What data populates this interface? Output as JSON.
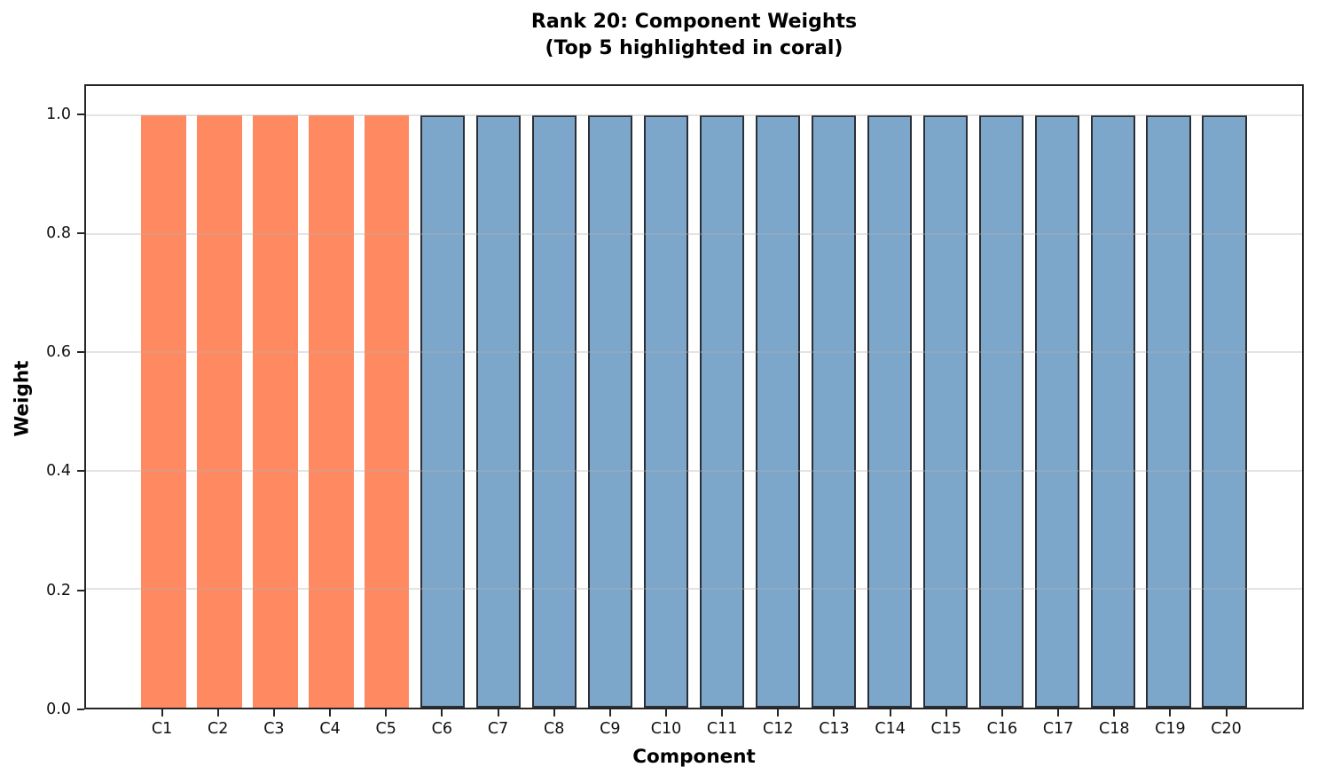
{
  "figure": {
    "title_line1": "Rank 20: Component Weights",
    "title_line2": "(Top 5 highlighted in coral)",
    "xlabel": "Component",
    "ylabel": "Weight"
  },
  "chart_data": {
    "type": "bar",
    "title": "Rank 20: Component Weights\n(Top 5 highlighted in coral)",
    "xlabel": "Component",
    "ylabel": "Weight",
    "categories": [
      "C1",
      "C2",
      "C3",
      "C4",
      "C5",
      "C6",
      "C7",
      "C8",
      "C9",
      "C10",
      "C11",
      "C12",
      "C13",
      "C14",
      "C15",
      "C16",
      "C17",
      "C18",
      "C19",
      "C20"
    ],
    "values": [
      1.0,
      1.0,
      1.0,
      1.0,
      1.0,
      1.0,
      1.0,
      1.0,
      1.0,
      1.0,
      1.0,
      1.0,
      1.0,
      1.0,
      1.0,
      1.0,
      1.0,
      1.0,
      1.0,
      1.0
    ],
    "highlight_count": 5,
    "ylim": [
      0,
      1.05
    ],
    "ytick_values": [
      0.0,
      0.2,
      0.4,
      0.6,
      0.8,
      1.0
    ],
    "ytick_labels": [
      "0.0",
      "0.2",
      "0.4",
      "0.6",
      "0.8",
      "1.0"
    ],
    "grid": "horizontal",
    "legend": "none",
    "colors": {
      "highlight_fill": "#ff8a62",
      "normal_fill": "#7da7ca",
      "normal_edge": "#2c2f35",
      "gridline": "rgba(176,176,176,0.35)",
      "spine": "#262626",
      "text": "#111111"
    }
  }
}
